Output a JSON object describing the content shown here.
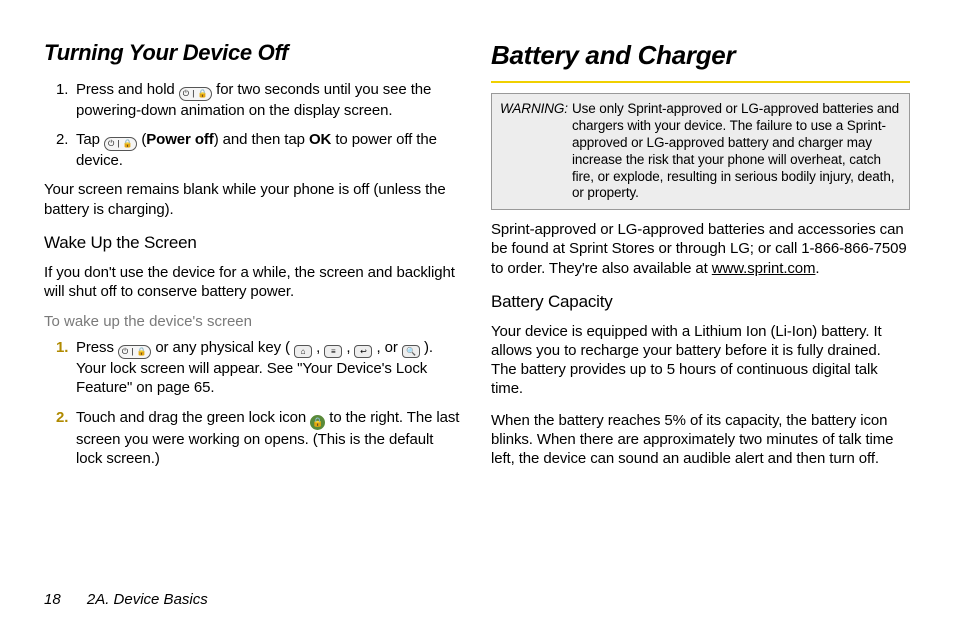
{
  "left": {
    "heading": "Turning Your Device Off",
    "steps": [
      {
        "num": "1.",
        "pre": "Press and hold ",
        "post": " for two seconds until you see the powering-down animation on the display screen."
      },
      {
        "num": "2.",
        "a": "Tap ",
        "b": " (",
        "bold1": "Power off",
        "c": ") and then tap ",
        "bold2": "OK",
        "d": " to power off the device."
      }
    ],
    "note": "Your screen remains blank while your phone is off (unless the battery is charging).",
    "sub1": "Wake Up the Screen",
    "p1": "If you don't use the device for a while, the screen and backlight will shut off to conserve battery power.",
    "inline": "To wake up the device's screen",
    "wakeSteps": [
      {
        "num": "1.",
        "a": "Press ",
        "b": " or any physical key ( ",
        "c": ", ",
        "d": ", ",
        "e": ", or ",
        "f": " ). Your lock screen will appear. See \"Your Device's Lock Feature\" on page 65."
      },
      {
        "num": "2.",
        "a": "Touch and drag the green lock icon ",
        "b": " to the right. The last screen you were working on opens. (This is the default lock screen.)"
      }
    ]
  },
  "right": {
    "heading": "Battery and Charger",
    "warnLabel": "WARNING:",
    "warnText": "Use only Sprint-approved or LG-approved batteries and chargers with your device. The failure to use a Sprint-approved or LG-approved battery and charger may increase the risk that your phone will overheat, catch fire, or explode, resulting in serious bodily injury, death, or property.",
    "p1a": "Sprint-approved or LG-approved batteries and accessories can be found at Sprint Stores or through LG; or call 1-866-866-7509 to order. They're also available at ",
    "p1link": "www.sprint.com",
    "p1b": ".",
    "sub1": "Battery Capacity",
    "p2": "Your device is equipped with a Lithium Ion (Li-Ion) battery. It allows you to recharge your battery before it is fully drained. The battery provides up to 5 hours of continuous digital talk time.",
    "p3": "When the battery reaches 5% of its capacity, the battery icon blinks. When there are approximately two minutes of talk time left, the device can sound an audible alert and then turn off."
  },
  "footer": {
    "page": "18",
    "section": "2A. Device Basics"
  },
  "icons": {
    "powerLock": "⏻ | 🔒",
    "home": "⌂",
    "menu": "≡",
    "back": "↩",
    "search": "🔍",
    "lock": "🔒"
  },
  "colors": {
    "accent_yellow": "#f0d000",
    "text_grey": "#7a7a7a",
    "warn_bg": "#ededed",
    "warn_border": "#999999",
    "lock_green": "#5a8a3a"
  }
}
